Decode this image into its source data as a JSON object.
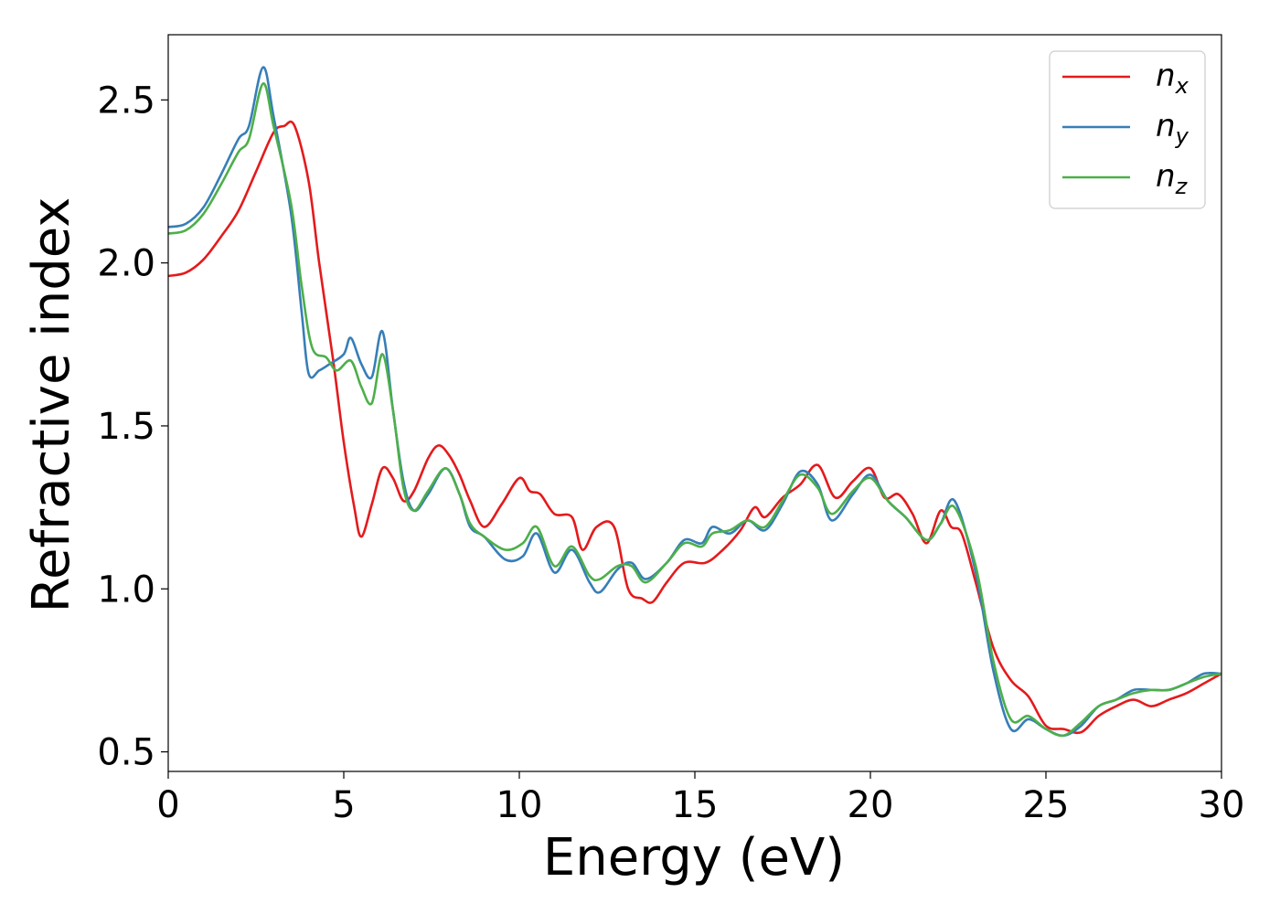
{
  "chart_data": {
    "type": "line",
    "title": "",
    "xlabel": "Energy (eV)",
    "ylabel": "Refractive index",
    "xlim": [
      0,
      30
    ],
    "ylim": [
      0.44,
      2.7
    ],
    "xticks": [
      0,
      5,
      10,
      15,
      20,
      25,
      30
    ],
    "xtick_labels": [
      "0",
      "5",
      "10",
      "15",
      "20",
      "25",
      "30"
    ],
    "yticks": [
      0.5,
      1.0,
      1.5,
      2.0,
      2.5
    ],
    "ytick_labels": [
      "0.5",
      "1.0",
      "1.5",
      "2.0",
      "2.5"
    ],
    "grid": false,
    "legend_position": "top-right",
    "series": [
      {
        "name": "n_x",
        "label_base": "n",
        "label_sub": "x",
        "color": "#e41a1c",
        "points": [
          [
            0,
            1.96
          ],
          [
            0.5,
            1.97
          ],
          [
            1,
            2.01
          ],
          [
            1.5,
            2.08
          ],
          [
            2,
            2.16
          ],
          [
            2.5,
            2.28
          ],
          [
            3,
            2.4
          ],
          [
            3.3,
            2.42
          ],
          [
            3.6,
            2.42
          ],
          [
            4,
            2.25
          ],
          [
            4.3,
            2.0
          ],
          [
            4.7,
            1.7
          ],
          [
            5,
            1.45
          ],
          [
            5.3,
            1.25
          ],
          [
            5.5,
            1.16
          ],
          [
            5.8,
            1.26
          ],
          [
            6.1,
            1.37
          ],
          [
            6.4,
            1.34
          ],
          [
            6.7,
            1.27
          ],
          [
            7,
            1.3
          ],
          [
            7.4,
            1.4
          ],
          [
            7.7,
            1.44
          ],
          [
            8,
            1.41
          ],
          [
            8.3,
            1.35
          ],
          [
            8.6,
            1.27
          ],
          [
            9,
            1.19
          ],
          [
            9.5,
            1.26
          ],
          [
            10,
            1.34
          ],
          [
            10.3,
            1.3
          ],
          [
            10.6,
            1.29
          ],
          [
            11,
            1.23
          ],
          [
            11.5,
            1.22
          ],
          [
            11.8,
            1.12
          ],
          [
            12.2,
            1.19
          ],
          [
            12.7,
            1.19
          ],
          [
            13.1,
            1.0
          ],
          [
            13.5,
            0.97
          ],
          [
            13.8,
            0.96
          ],
          [
            14.2,
            1.02
          ],
          [
            14.7,
            1.08
          ],
          [
            15.3,
            1.08
          ],
          [
            15.8,
            1.12
          ],
          [
            16.3,
            1.18
          ],
          [
            16.7,
            1.25
          ],
          [
            17,
            1.22
          ],
          [
            17.5,
            1.28
          ],
          [
            18,
            1.32
          ],
          [
            18.5,
            1.38
          ],
          [
            19,
            1.28
          ],
          [
            19.5,
            1.33
          ],
          [
            20,
            1.37
          ],
          [
            20.4,
            1.28
          ],
          [
            20.8,
            1.29
          ],
          [
            21.2,
            1.23
          ],
          [
            21.6,
            1.14
          ],
          [
            22,
            1.24
          ],
          [
            22.3,
            1.19
          ],
          [
            22.6,
            1.17
          ],
          [
            23,
            1.02
          ],
          [
            23.5,
            0.82
          ],
          [
            24,
            0.72
          ],
          [
            24.5,
            0.67
          ],
          [
            25,
            0.58
          ],
          [
            25.5,
            0.57
          ],
          [
            26,
            0.56
          ],
          [
            26.5,
            0.61
          ],
          [
            27,
            0.64
          ],
          [
            27.5,
            0.66
          ],
          [
            28,
            0.64
          ],
          [
            28.5,
            0.66
          ],
          [
            29,
            0.68
          ],
          [
            29.5,
            0.71
          ],
          [
            30,
            0.74
          ]
        ]
      },
      {
        "name": "n_y",
        "label_base": "n",
        "label_sub": "y",
        "color": "#377eb8",
        "points": [
          [
            0,
            2.11
          ],
          [
            0.5,
            2.12
          ],
          [
            1,
            2.17
          ],
          [
            1.5,
            2.27
          ],
          [
            2,
            2.38
          ],
          [
            2.3,
            2.42
          ],
          [
            2.7,
            2.6
          ],
          [
            3,
            2.45
          ],
          [
            3.5,
            2.15
          ],
          [
            3.8,
            1.85
          ],
          [
            4,
            1.66
          ],
          [
            4.3,
            1.67
          ],
          [
            4.6,
            1.69
          ],
          [
            5,
            1.72
          ],
          [
            5.2,
            1.77
          ],
          [
            5.5,
            1.69
          ],
          [
            5.8,
            1.65
          ],
          [
            6.1,
            1.79
          ],
          [
            6.4,
            1.55
          ],
          [
            6.7,
            1.33
          ],
          [
            7,
            1.24
          ],
          [
            7.4,
            1.29
          ],
          [
            7.9,
            1.37
          ],
          [
            8.3,
            1.29
          ],
          [
            8.6,
            1.19
          ],
          [
            9,
            1.16
          ],
          [
            9.6,
            1.09
          ],
          [
            10.1,
            1.1
          ],
          [
            10.5,
            1.17
          ],
          [
            11,
            1.05
          ],
          [
            11.5,
            1.12
          ],
          [
            12,
            1.02
          ],
          [
            12.3,
            0.99
          ],
          [
            12.8,
            1.06
          ],
          [
            13.2,
            1.08
          ],
          [
            13.6,
            1.03
          ],
          [
            14.2,
            1.08
          ],
          [
            14.7,
            1.15
          ],
          [
            15.2,
            1.14
          ],
          [
            15.5,
            1.19
          ],
          [
            16,
            1.17
          ],
          [
            16.5,
            1.21
          ],
          [
            17,
            1.18
          ],
          [
            17.5,
            1.26
          ],
          [
            18,
            1.36
          ],
          [
            18.5,
            1.32
          ],
          [
            18.9,
            1.21
          ],
          [
            19.5,
            1.29
          ],
          [
            20,
            1.35
          ],
          [
            20.5,
            1.27
          ],
          [
            21,
            1.22
          ],
          [
            21.6,
            1.15
          ],
          [
            22,
            1.2
          ],
          [
            22.4,
            1.27
          ],
          [
            23,
            1.05
          ],
          [
            23.5,
            0.75
          ],
          [
            24,
            0.57
          ],
          [
            24.5,
            0.6
          ],
          [
            25,
            0.57
          ],
          [
            25.5,
            0.55
          ],
          [
            26,
            0.58
          ],
          [
            26.5,
            0.64
          ],
          [
            27,
            0.66
          ],
          [
            27.5,
            0.69
          ],
          [
            28,
            0.69
          ],
          [
            28.5,
            0.69
          ],
          [
            29,
            0.71
          ],
          [
            29.5,
            0.74
          ],
          [
            30,
            0.74
          ]
        ]
      },
      {
        "name": "n_z",
        "label_base": "n",
        "label_sub": "z",
        "color": "#4daf4a",
        "points": [
          [
            0,
            2.09
          ],
          [
            0.5,
            2.1
          ],
          [
            1,
            2.15
          ],
          [
            1.5,
            2.24
          ],
          [
            2,
            2.34
          ],
          [
            2.3,
            2.38
          ],
          [
            2.7,
            2.55
          ],
          [
            3,
            2.42
          ],
          [
            3.5,
            2.18
          ],
          [
            3.8,
            1.93
          ],
          [
            4.1,
            1.74
          ],
          [
            4.5,
            1.71
          ],
          [
            4.8,
            1.67
          ],
          [
            5.2,
            1.7
          ],
          [
            5.5,
            1.62
          ],
          [
            5.8,
            1.57
          ],
          [
            6.1,
            1.72
          ],
          [
            6.4,
            1.55
          ],
          [
            6.7,
            1.31
          ],
          [
            7,
            1.24
          ],
          [
            7.4,
            1.3
          ],
          [
            7.9,
            1.37
          ],
          [
            8.3,
            1.29
          ],
          [
            8.6,
            1.2
          ],
          [
            9,
            1.16
          ],
          [
            9.6,
            1.12
          ],
          [
            10.1,
            1.14
          ],
          [
            10.5,
            1.19
          ],
          [
            11,
            1.07
          ],
          [
            11.5,
            1.13
          ],
          [
            12,
            1.04
          ],
          [
            12.3,
            1.03
          ],
          [
            12.8,
            1.07
          ],
          [
            13.2,
            1.07
          ],
          [
            13.6,
            1.02
          ],
          [
            14.2,
            1.08
          ],
          [
            14.7,
            1.14
          ],
          [
            15.2,
            1.13
          ],
          [
            15.5,
            1.17
          ],
          [
            16,
            1.18
          ],
          [
            16.5,
            1.21
          ],
          [
            17,
            1.19
          ],
          [
            17.5,
            1.27
          ],
          [
            18,
            1.35
          ],
          [
            18.5,
            1.31
          ],
          [
            18.9,
            1.23
          ],
          [
            19.5,
            1.3
          ],
          [
            20,
            1.34
          ],
          [
            20.5,
            1.27
          ],
          [
            21,
            1.22
          ],
          [
            21.6,
            1.15
          ],
          [
            22,
            1.2
          ],
          [
            22.4,
            1.25
          ],
          [
            23,
            1.07
          ],
          [
            23.5,
            0.78
          ],
          [
            24,
            0.6
          ],
          [
            24.5,
            0.61
          ],
          [
            25,
            0.57
          ],
          [
            25.5,
            0.55
          ],
          [
            26,
            0.59
          ],
          [
            26.5,
            0.64
          ],
          [
            27,
            0.66
          ],
          [
            27.5,
            0.68
          ],
          [
            28,
            0.69
          ],
          [
            28.5,
            0.69
          ],
          [
            29,
            0.71
          ],
          [
            29.5,
            0.73
          ],
          [
            30,
            0.74
          ]
        ]
      }
    ]
  }
}
